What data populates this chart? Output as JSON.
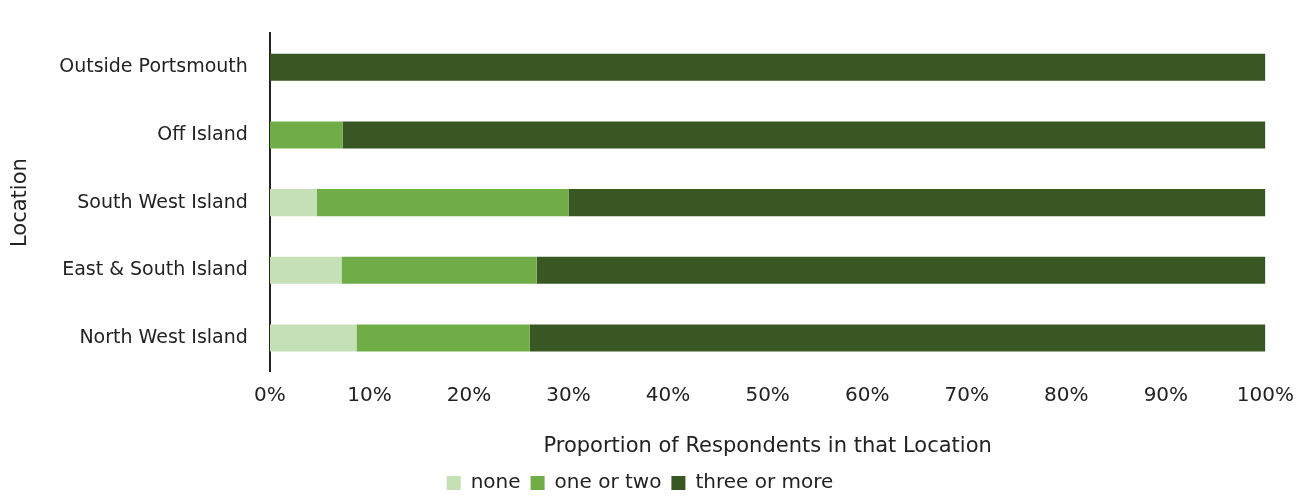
{
  "chart_data": {
    "type": "bar",
    "orientation": "horizontal",
    "stacked": true,
    "xlabel": "Proportion of Respondents in that Location",
    "ylabel": "Location",
    "categories": [
      "Outside Portsmouth",
      "Off Island",
      "South West Island",
      "East & South Island",
      "North West Island"
    ],
    "series": [
      {
        "name": "none",
        "color": "#c5e0b4",
        "values": [
          0,
          0,
          4.7,
          7.2,
          8.7
        ]
      },
      {
        "name": "one or two",
        "color": "#70ad47",
        "values": [
          0,
          7.3,
          25.3,
          19.6,
          17.4
        ]
      },
      {
        "name": "three or more",
        "color": "#385723",
        "values": [
          100,
          92.7,
          70.0,
          73.2,
          73.9
        ]
      }
    ],
    "xlim": [
      0,
      100
    ],
    "xticks": [
      {
        "value": 0,
        "label": "0%"
      },
      {
        "value": 10,
        "label": "10%"
      },
      {
        "value": 20,
        "label": "20%"
      },
      {
        "value": 30,
        "label": "30%"
      },
      {
        "value": 40,
        "label": "40%"
      },
      {
        "value": 50,
        "label": "50%"
      },
      {
        "value": 60,
        "label": "60%"
      },
      {
        "value": 70,
        "label": "70%"
      },
      {
        "value": 80,
        "label": "80%"
      },
      {
        "value": 90,
        "label": "90%"
      },
      {
        "value": 100,
        "label": "100%"
      }
    ],
    "grid": false,
    "legend": "bottom"
  }
}
